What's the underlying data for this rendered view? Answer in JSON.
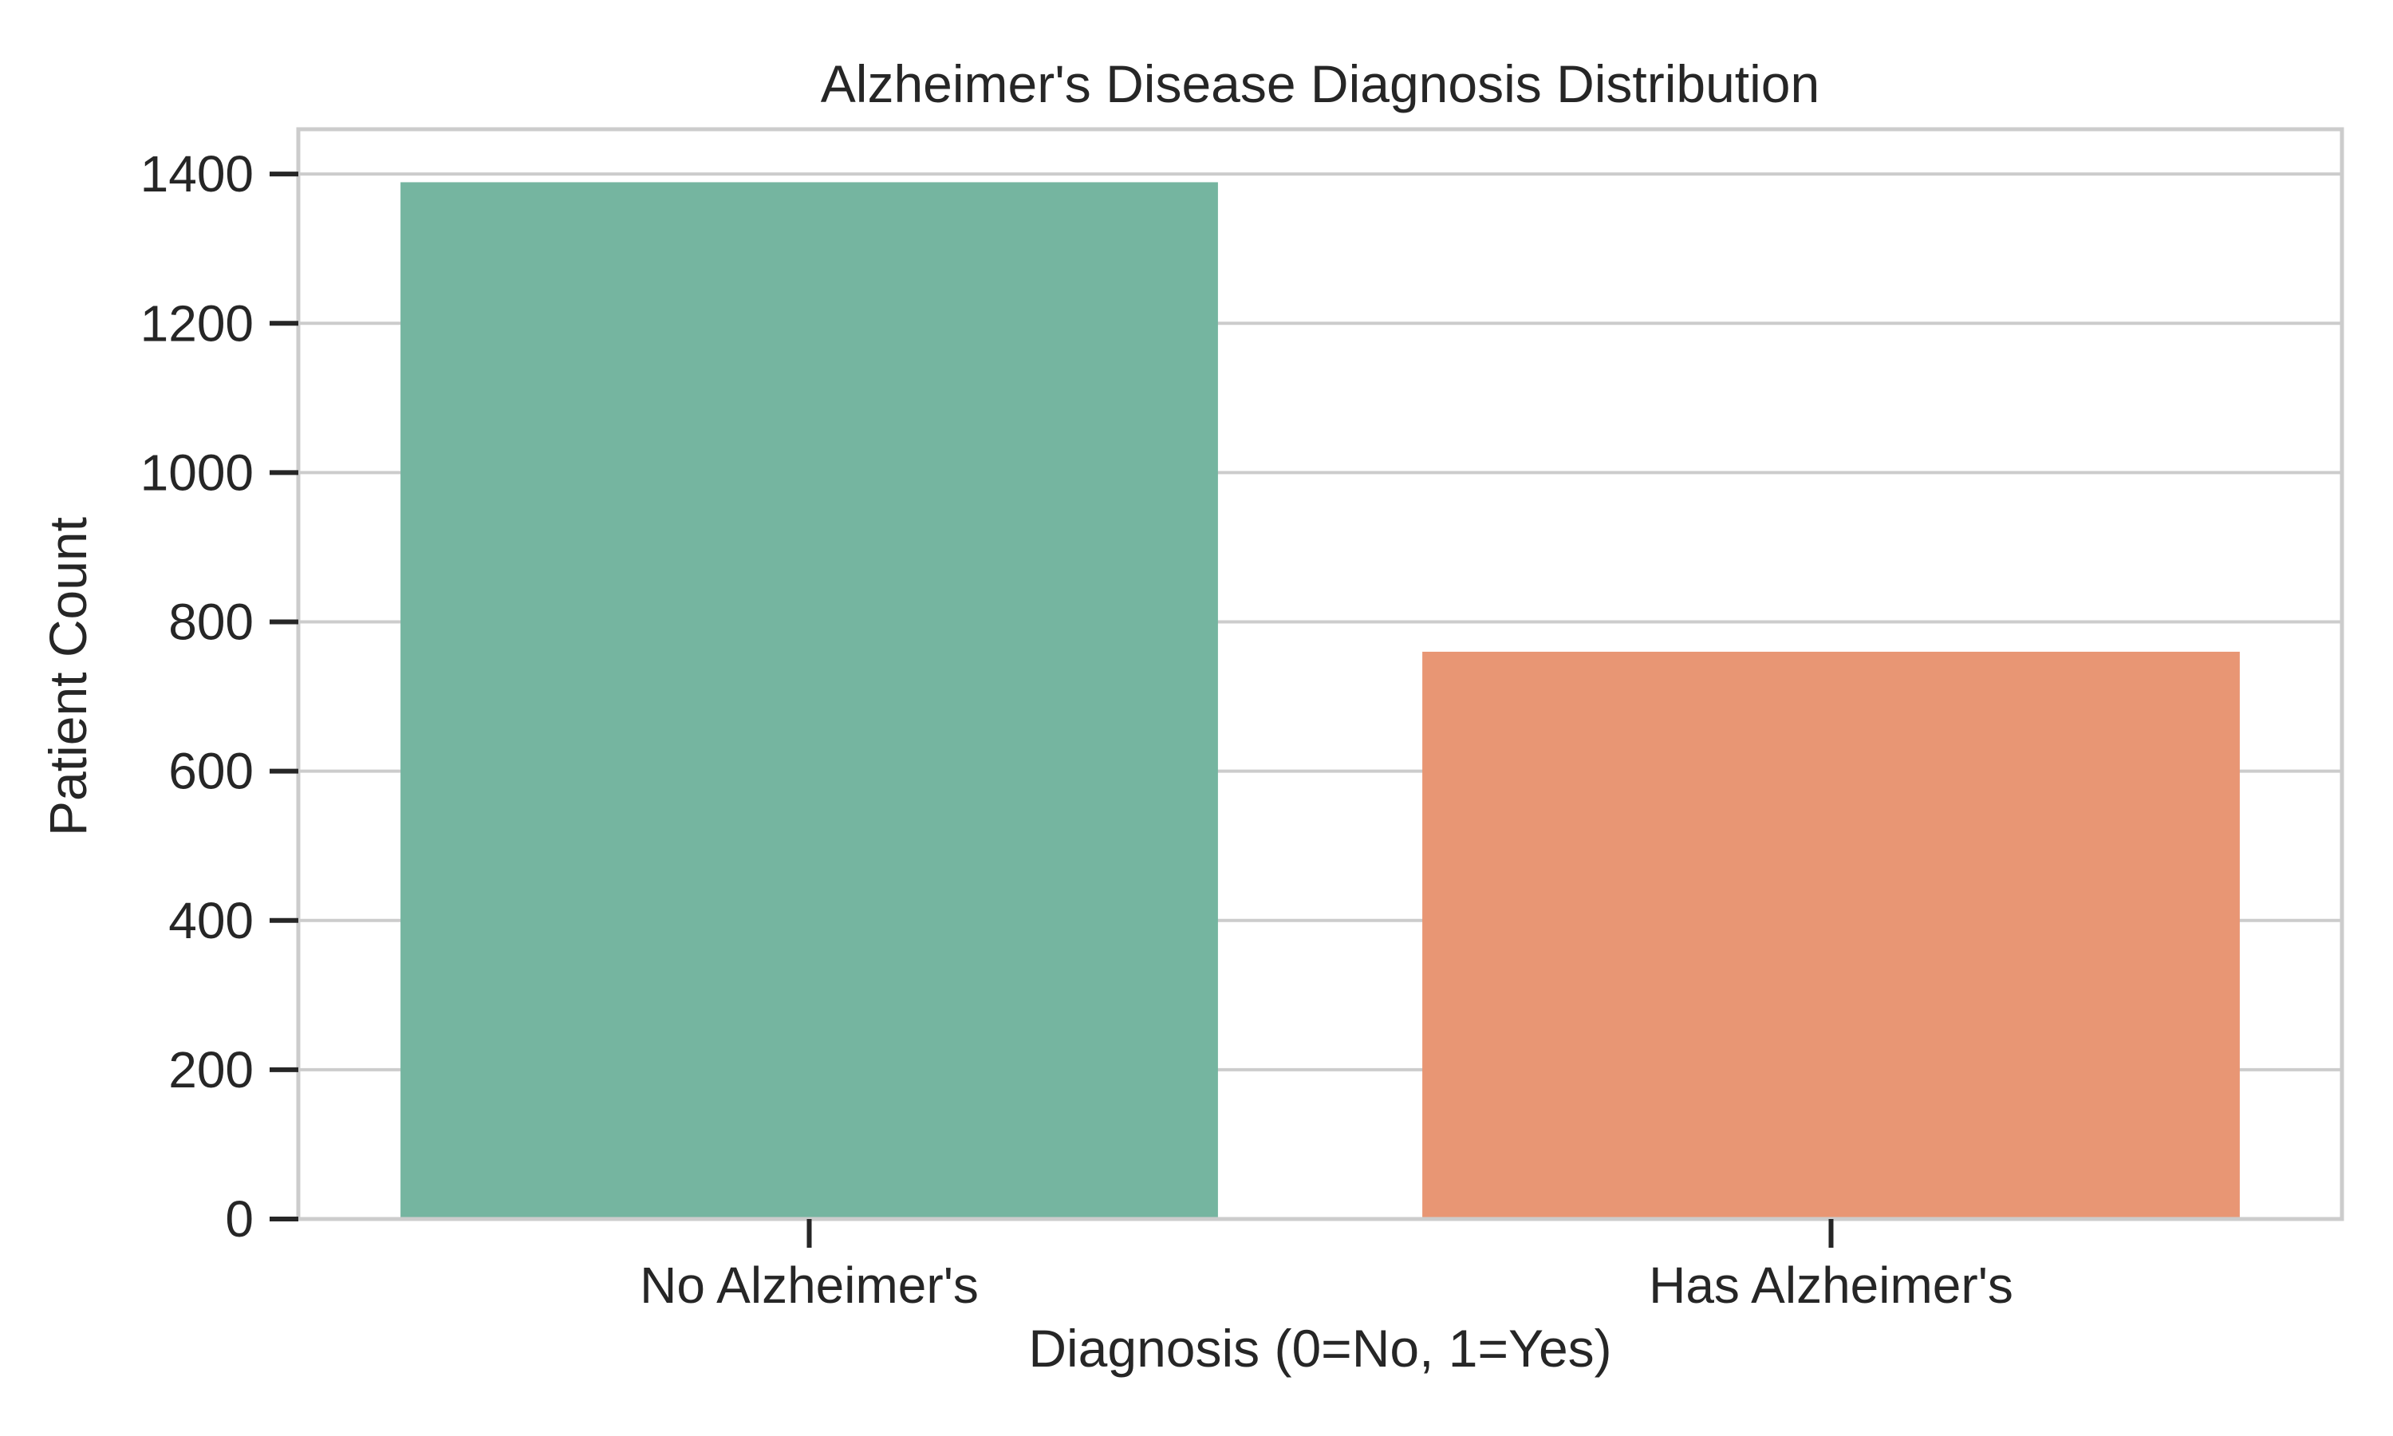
{
  "chart_data": {
    "type": "bar",
    "title": "Alzheimer's Disease Diagnosis Distribution",
    "xlabel": "Diagnosis (0=No, 1=Yes)",
    "ylabel": "Patient Count",
    "categories": [
      "No Alzheimer's",
      "Has Alzheimer's"
    ],
    "values": [
      1389,
      760
    ],
    "colors": [
      "#75b5a0",
      "#e89674"
    ],
    "ylim": [
      0,
      1460
    ],
    "yticks": [
      0,
      200,
      400,
      600,
      800,
      1000,
      1200,
      1400
    ],
    "grid": "horizontal",
    "legend": "none"
  },
  "style": {
    "gridColor": "#cccccc",
    "spineColor": "#cccccc",
    "tickColor": "#262626",
    "textColor": "#262626",
    "background": "#ffffff"
  }
}
